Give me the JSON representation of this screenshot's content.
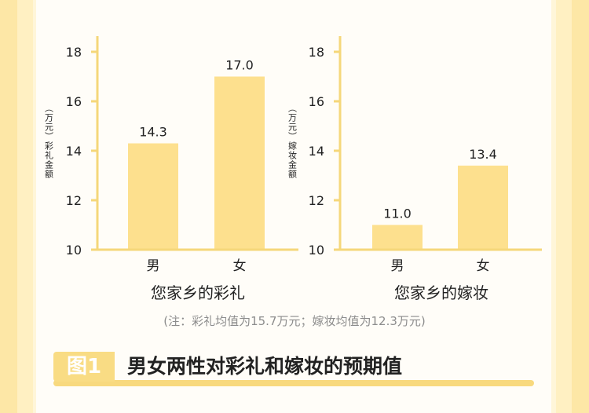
{
  "chart_data": [
    {
      "type": "bar",
      "title": "您家乡的彩礼",
      "ylabel": "（万元）彩礼金额",
      "categories": [
        "男",
        "女"
      ],
      "values": [
        14.3,
        17.0
      ],
      "value_labels": [
        "14.3",
        "17.0"
      ],
      "ylim": [
        10,
        18
      ],
      "yticks": [
        10,
        12,
        14,
        16,
        18
      ],
      "bar_color": "#fde08e"
    },
    {
      "type": "bar",
      "title": "您家乡的嫁妆",
      "ylabel": "（万元）嫁妆金额",
      "categories": [
        "男",
        "女"
      ],
      "values": [
        11.0,
        13.4
      ],
      "value_labels": [
        "11.0",
        "13.4"
      ],
      "ylim": [
        10,
        18
      ],
      "yticks": [
        10,
        12,
        14,
        16,
        18
      ],
      "bar_color": "#fde08e"
    }
  ],
  "note": "(注：彩礼均值为15.7万元；嫁妆均值为12.3万元)",
  "figure": {
    "badge": "图1",
    "caption": "男女两性对彩礼和嫁妆的预期值"
  },
  "colors": {
    "axis": "#f5d77a",
    "bar": "#fde08e",
    "text": "#222222",
    "note": "#8c8c8c"
  }
}
